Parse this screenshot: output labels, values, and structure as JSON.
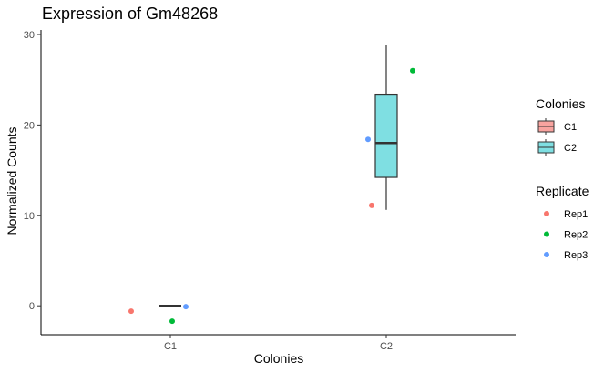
{
  "chart_data": {
    "type": "box",
    "title": "Expression of Gm48268",
    "xlabel": "Colonies",
    "ylabel": "Normalized Counts",
    "categories": [
      "C1",
      "C2"
    ],
    "ylim": [
      -3.2,
      30.5
    ],
    "yticks": [
      0,
      10,
      20,
      30
    ],
    "grid": false,
    "legend_position": "right",
    "boxes": [
      {
        "category": "C1",
        "lower_whisker": 0,
        "q1": 0,
        "median": 0,
        "q3": 0,
        "upper_whisker": 0,
        "fill": "#f8a39f"
      },
      {
        "category": "C2",
        "lower_whisker": 10.6,
        "q1": 14.2,
        "median": 18.0,
        "q3": 23.4,
        "upper_whisker": 28.8,
        "fill": "#7fdfe2"
      }
    ],
    "points": [
      {
        "category": "C1",
        "replicate": "Rep1",
        "y": -0.6
      },
      {
        "category": "C1",
        "replicate": "Rep2",
        "y": -1.7
      },
      {
        "category": "C1",
        "replicate": "Rep3",
        "y": -0.1
      },
      {
        "category": "C2",
        "replicate": "Rep1",
        "y": 11.1
      },
      {
        "category": "C2",
        "replicate": "Rep2",
        "y": 26.0
      },
      {
        "category": "C2",
        "replicate": "Rep3",
        "y": 18.4
      }
    ],
    "legend_colonies": {
      "title": "Colonies",
      "items": [
        {
          "label": "C1",
          "color": "#f8a39f"
        },
        {
          "label": "C2",
          "color": "#7fdfe2"
        }
      ]
    },
    "legend_replicate": {
      "title": "Replicate",
      "items": [
        {
          "label": "Rep1",
          "color": "#f8766d"
        },
        {
          "label": "Rep2",
          "color": "#00ba38"
        },
        {
          "label": "Rep3",
          "color": "#619cff"
        }
      ]
    }
  }
}
